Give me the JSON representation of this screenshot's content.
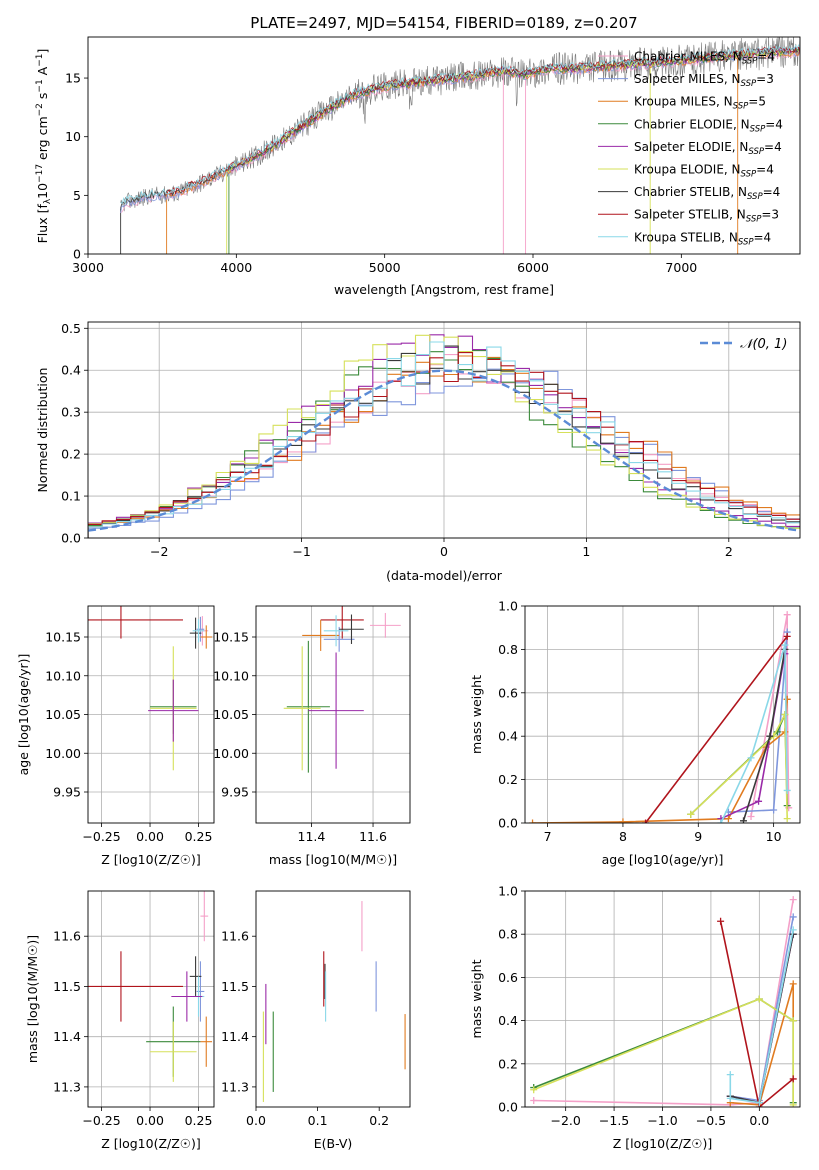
{
  "title": "PLATE=2497, MJD=54154, FIBERID=0189, z=0.207",
  "colors": {
    "C_MILES": "#f4a0c8",
    "S_MILES": "#7f96dc",
    "K_MILES": "#e07b20",
    "C_ELODIE": "#3b8a3b",
    "S_ELODIE": "#9a2aa8",
    "K_ELODIE": "#d6e05a",
    "C_STELIB": "#3a3a3a",
    "S_STELIB": "#b0141c",
    "K_STELIB": "#8ad8e8",
    "normal": "#5b8bd6",
    "spectrum": "#7a7a7a"
  },
  "chart_data": [
    {
      "id": "spectrum",
      "type": "line",
      "xlabel": "wavelength [Angstrom, rest frame]",
      "ylabel": "Flux [f_λ 10^-17 erg cm^-2 s^-1 A^-1]",
      "xlim": [
        3000,
        7800
      ],
      "ylim": [
        0,
        18.5
      ],
      "xticks": [
        3000,
        4000,
        5000,
        6000,
        7000
      ],
      "yticks": [
        0,
        5,
        10,
        15
      ],
      "grid": false,
      "legend": "top-right",
      "legend_entries": [
        {
          "key": "C_MILES",
          "text": "Chabrier MILES, N",
          "sub": "SSP",
          "tail": "=4"
        },
        {
          "key": "S_MILES",
          "text": "Salpeter MILES, N",
          "sub": "SSP",
          "tail": "=3"
        },
        {
          "key": "K_MILES",
          "text": "Kroupa MILES, N",
          "sub": "SSP",
          "tail": "=5"
        },
        {
          "key": "C_ELODIE",
          "text": "Chabrier ELODIE, N",
          "sub": "SSP",
          "tail": "=4"
        },
        {
          "key": "S_ELODIE",
          "text": "Salpeter ELODIE, N",
          "sub": "SSP",
          "tail": "=4"
        },
        {
          "key": "K_ELODIE",
          "text": "Kroupa ELODIE, N",
          "sub": "SSP",
          "tail": "=4"
        },
        {
          "key": "C_STELIB",
          "text": "Chabrier STELIB, N",
          "sub": "SSP",
          "tail": "=4"
        },
        {
          "key": "S_STELIB",
          "text": "Salpeter STELIB, N",
          "sub": "SSP",
          "tail": "=3"
        },
        {
          "key": "K_STELIB",
          "text": "Kroupa STELIB, N",
          "sub": "SSP",
          "tail": "=4"
        }
      ],
      "spectrum_envelope": {
        "x": [
          3220,
          3250,
          3400,
          3600,
          3800,
          3950,
          4050,
          4200,
          4400,
          4600,
          4800,
          5000,
          5200,
          5400,
          5600,
          5800,
          5950,
          6100,
          6300,
          6500,
          6700,
          6900,
          7100,
          7300,
          7500,
          7800
        ],
        "y": [
          3.9,
          4.4,
          4.9,
          5.2,
          6.3,
          7.2,
          7.8,
          8.8,
          10.5,
          12.2,
          13.6,
          14.3,
          14.6,
          14.9,
          15.2,
          15.6,
          15.3,
          15.8,
          15.8,
          16.0,
          16.2,
          16.4,
          16.6,
          16.9,
          17.1,
          17.3
        ]
      }
    },
    {
      "id": "residuals",
      "type": "histogram",
      "xlabel": "(data-model)/error",
      "ylabel": "Normed distribution",
      "xlim": [
        -2.5,
        2.5
      ],
      "ylim": [
        0,
        0.515
      ],
      "xticks": [
        -2,
        -1,
        0,
        1,
        2
      ],
      "yticks": [
        0.0,
        0.1,
        0.2,
        0.3,
        0.4,
        0.5
      ],
      "grid": true,
      "legend": "top-right",
      "legend_entries": [
        {
          "key": "normal",
          "text": "𝒩(0, 1)"
        }
      ],
      "bins": 50,
      "series": [
        {
          "key": "C_MILES",
          "peak": 0.38,
          "shift": 0.15,
          "width": 1.05,
          "seed": 1
        },
        {
          "key": "S_MILES",
          "peak": 0.39,
          "shift": 0.25,
          "width": 1.02,
          "seed": 2
        },
        {
          "key": "K_MILES",
          "peak": 0.4,
          "shift": 0.2,
          "width": 1.05,
          "seed": 3
        },
        {
          "key": "C_ELODIE",
          "peak": 0.42,
          "shift": -0.1,
          "width": 0.95,
          "seed": 4
        },
        {
          "key": "S_ELODIE",
          "peak": 0.43,
          "shift": -0.05,
          "width": 0.98,
          "seed": 5
        },
        {
          "key": "K_ELODIE",
          "peak": 0.44,
          "shift": -0.1,
          "width": 0.95,
          "seed": 6
        },
        {
          "key": "C_STELIB",
          "peak": 0.4,
          "shift": 0.05,
          "width": 1.02,
          "seed": 7
        },
        {
          "key": "S_STELIB",
          "peak": 0.4,
          "shift": 0.1,
          "width": 1.05,
          "seed": 8
        },
        {
          "key": "K_STELIB",
          "peak": 0.41,
          "shift": 0.1,
          "width": 1.0,
          "seed": 9
        }
      ]
    },
    {
      "id": "age_vs_Z",
      "type": "errorbar",
      "xlabel": "Z [log10(Z/Z☉)]",
      "ylabel": "age  [log10(age/yr)]",
      "xlim": [
        -0.32,
        0.33
      ],
      "ylim": [
        9.91,
        10.19
      ],
      "xticks": [
        -0.25,
        0.0,
        0.25
      ],
      "xticklabels": [
        "−0.25",
        "0.00",
        "0.25"
      ],
      "yticks": [
        9.95,
        10.0,
        10.05,
        10.1,
        10.15
      ],
      "yticklabels": [
        "9.95",
        "10.00",
        "10.05",
        "10.10",
        "10.15"
      ],
      "grid": true,
      "points": [
        {
          "key": "S_STELIB",
          "x": -0.15,
          "y": 10.172,
          "xerr": 0.32,
          "yerr": 0.024
        },
        {
          "key": "C_MILES",
          "x": 0.27,
          "y": 10.158,
          "xerr": 0.03,
          "yerr": 0.019
        },
        {
          "key": "S_MILES",
          "x": 0.26,
          "y": 10.16,
          "xerr": 0.02,
          "yerr": 0.016
        },
        {
          "key": "K_MILES",
          "x": 0.29,
          "y": 10.15,
          "xerr": 0.03,
          "yerr": 0.015
        },
        {
          "key": "C_STELIB",
          "x": 0.235,
          "y": 10.155,
          "xerr": 0.03,
          "yerr": 0.02
        },
        {
          "key": "K_STELIB",
          "x": 0.25,
          "y": 10.158,
          "xerr": 0.03,
          "yerr": 0.015
        },
        {
          "key": "C_ELODIE",
          "x": 0.12,
          "y": 10.06,
          "xerr": 0.12,
          "yerr": 0.035
        },
        {
          "key": "K_ELODIE",
          "x": 0.12,
          "y": 10.058,
          "xerr": 0.12,
          "yerr": 0.08
        },
        {
          "key": "S_ELODIE",
          "x": 0.12,
          "y": 10.055,
          "xerr": 0.13,
          "yerr": 0.04
        }
      ]
    },
    {
      "id": "age_vs_mass",
      "type": "errorbar",
      "xlabel": "mass [log10(M/M☉)]",
      "ylabel": "",
      "xlim": [
        11.22,
        11.72
      ],
      "ylim": [
        9.91,
        10.19
      ],
      "xticks": [
        11.4,
        11.6
      ],
      "xticklabels": [
        "11.4",
        "11.6"
      ],
      "yticks": [
        9.95,
        10.0,
        10.05,
        10.1,
        10.15
      ],
      "yticklabels": [
        "9.95",
        "10.00",
        "10.05",
        "10.10",
        "10.15"
      ],
      "grid": true,
      "points": [
        {
          "key": "S_STELIB",
          "x": 11.5,
          "y": 10.172,
          "xerr": 0.07,
          "yerr": 0.024
        },
        {
          "key": "C_MILES",
          "x": 11.64,
          "y": 10.165,
          "xerr": 0.05,
          "yerr": 0.016
        },
        {
          "key": "S_MILES",
          "x": 11.49,
          "y": 10.147,
          "xerr": 0.05,
          "yerr": 0.016
        },
        {
          "key": "K_MILES",
          "x": 11.43,
          "y": 10.152,
          "xerr": 0.06,
          "yerr": 0.02
        },
        {
          "key": "C_STELIB",
          "x": 11.53,
          "y": 10.16,
          "xerr": 0.04,
          "yerr": 0.019
        },
        {
          "key": "K_STELIB",
          "x": 11.48,
          "y": 10.158,
          "xerr": 0.04,
          "yerr": 0.02
        },
        {
          "key": "C_ELODIE",
          "x": 11.39,
          "y": 10.06,
          "xerr": 0.07,
          "yerr": 0.085
        },
        {
          "key": "K_ELODIE",
          "x": 11.37,
          "y": 10.058,
          "xerr": 0.06,
          "yerr": 0.08
        },
        {
          "key": "S_ELODIE",
          "x": 11.48,
          "y": 10.055,
          "xerr": 0.09,
          "yerr": 0.075
        }
      ]
    },
    {
      "id": "weight_vs_age",
      "type": "line",
      "xlabel": "age  [log10(age/yr)]",
      "ylabel": "mass weight",
      "xlim": [
        6.7,
        10.35
      ],
      "ylim": [
        0,
        1
      ],
      "xticks": [
        7,
        8,
        9,
        10
      ],
      "yticks": [
        0.0,
        0.2,
        0.4,
        0.6,
        0.8,
        1.0
      ],
      "grid": true,
      "series": [
        {
          "key": "C_MILES",
          "x": [
            9.7,
            10.18,
            10.18,
            10.2
          ],
          "y": [
            0.03,
            0.96,
            0.57,
            0.07
          ]
        },
        {
          "key": "S_MILES",
          "x": [
            9.4,
            10.0,
            10.18
          ],
          "y": [
            0.05,
            0.06,
            0.88
          ]
        },
        {
          "key": "K_MILES",
          "x": [
            6.8,
            8.0,
            9.4,
            9.9,
            10.15,
            10.18
          ],
          "y": [
            0.0,
            0.005,
            0.02,
            0.35,
            0.42,
            0.57
          ]
        },
        {
          "key": "C_ELODIE",
          "x": [
            8.9,
            10.05,
            10.15,
            10.18
          ],
          "y": [
            0.04,
            0.42,
            0.5,
            0.08
          ]
        },
        {
          "key": "S_ELODIE",
          "x": [
            9.3,
            9.8,
            10.15
          ],
          "y": [
            0.02,
            0.1,
            0.78
          ]
        },
        {
          "key": "K_ELODIE",
          "x": [
            8.9,
            10.0,
            10.15,
            10.18
          ],
          "y": [
            0.04,
            0.4,
            0.5,
            0.02
          ]
        },
        {
          "key": "C_STELIB",
          "x": [
            9.6,
            9.95,
            10.15
          ],
          "y": [
            0.01,
            0.4,
            0.8
          ]
        },
        {
          "key": "S_STELIB",
          "x": [
            8.3,
            10.18
          ],
          "y": [
            0.0,
            0.86
          ]
        },
        {
          "key": "K_STELIB",
          "x": [
            9.3,
            9.7,
            10.15,
            10.18
          ],
          "y": [
            0.0,
            0.3,
            0.82,
            0.15
          ]
        }
      ]
    },
    {
      "id": "mass_vs_Z",
      "type": "errorbar",
      "xlabel": "Z [log10(Z/Z☉)]",
      "ylabel": "mass [log10(M/M☉)]",
      "xlim": [
        -0.32,
        0.33
      ],
      "ylim": [
        11.26,
        11.69
      ],
      "xticks": [
        -0.25,
        0.0,
        0.25
      ],
      "xticklabels": [
        "−0.25",
        "0.00",
        "0.25"
      ],
      "yticks": [
        11.3,
        11.4,
        11.5,
        11.6
      ],
      "yticklabels": [
        "11.3",
        "11.4",
        "11.5",
        "11.6"
      ],
      "grid": true,
      "points": [
        {
          "key": "S_STELIB",
          "x": -0.15,
          "y": 11.5,
          "xerr": 0.32,
          "yerr": 0.07
        },
        {
          "key": "C_MILES",
          "x": 0.28,
          "y": 11.64,
          "xerr": 0.02,
          "yerr": 0.05
        },
        {
          "key": "S_MILES",
          "x": 0.26,
          "y": 11.49,
          "xerr": 0.02,
          "yerr": 0.06
        },
        {
          "key": "K_MILES",
          "x": 0.29,
          "y": 11.39,
          "xerr": 0.03,
          "yerr": 0.05
        },
        {
          "key": "C_STELIB",
          "x": 0.235,
          "y": 11.52,
          "xerr": 0.03,
          "yerr": 0.04
        },
        {
          "key": "K_STELIB",
          "x": 0.25,
          "y": 11.48,
          "xerr": 0.03,
          "yerr": 0.04
        },
        {
          "key": "C_ELODIE",
          "x": 0.12,
          "y": 11.39,
          "xerr": 0.14,
          "yerr": 0.07
        },
        {
          "key": "K_ELODIE",
          "x": 0.12,
          "y": 11.37,
          "xerr": 0.12,
          "yerr": 0.06
        },
        {
          "key": "S_ELODIE",
          "x": 0.19,
          "y": 11.48,
          "xerr": 0.08,
          "yerr": 0.05
        }
      ]
    },
    {
      "id": "mass_vs_EBV",
      "type": "errorbar",
      "xlabel": "E(B-V)",
      "ylabel": "",
      "xlim": [
        0.0,
        0.25
      ],
      "ylim": [
        11.26,
        11.69
      ],
      "xticks": [
        0.0,
        0.1,
        0.2
      ],
      "xticklabels": [
        "0.0",
        "0.1",
        "0.2"
      ],
      "yticks": [
        11.3,
        11.4,
        11.5,
        11.6
      ],
      "yticklabels": [
        "11.3",
        "11.4",
        "11.5",
        "11.6"
      ],
      "grid": false,
      "points": [
        {
          "key": "C_MILES",
          "x": 0.172,
          "y": 11.62,
          "xerr": 0.0,
          "yerr": 0.05
        },
        {
          "key": "S_MILES",
          "x": 0.195,
          "y": 11.5,
          "xerr": 0.0,
          "yerr": 0.05
        },
        {
          "key": "K_MILES",
          "x": 0.242,
          "y": 11.39,
          "xerr": 0.0,
          "yerr": 0.055
        },
        {
          "key": "C_STELIB",
          "x": 0.112,
          "y": 11.51,
          "xerr": 0.0,
          "yerr": 0.035
        },
        {
          "key": "S_STELIB",
          "x": 0.11,
          "y": 11.515,
          "xerr": 0.0,
          "yerr": 0.055
        },
        {
          "key": "K_STELIB",
          "x": 0.113,
          "y": 11.48,
          "xerr": 0.0,
          "yerr": 0.05
        },
        {
          "key": "C_ELODIE",
          "x": 0.028,
          "y": 11.37,
          "xerr": 0.0,
          "yerr": 0.08
        },
        {
          "key": "S_ELODIE",
          "x": 0.016,
          "y": 11.445,
          "xerr": 0.0,
          "yerr": 0.06
        },
        {
          "key": "K_ELODIE",
          "x": 0.012,
          "y": 11.36,
          "xerr": 0.0,
          "yerr": 0.09
        }
      ]
    },
    {
      "id": "weight_vs_Z",
      "type": "line",
      "xlabel": "Z [log10(Z/Z☉)]",
      "ylabel": "mass weight",
      "xlim": [
        -2.42,
        0.42
      ],
      "ylim": [
        0,
        1
      ],
      "xticks": [
        -2.0,
        -1.5,
        -1.0,
        -0.5,
        0.0
      ],
      "xticklabels": [
        "−2.0",
        "−1.5",
        "−1.0",
        "−0.5",
        "0.0"
      ],
      "yticks": [
        0.0,
        0.2,
        0.4,
        0.6,
        0.8,
        1.0
      ],
      "grid": true,
      "series": [
        {
          "key": "C_MILES",
          "x": [
            -2.33,
            -0.3,
            0.0,
            0.35
          ],
          "y": [
            0.03,
            0.01,
            0.02,
            0.96
          ]
        },
        {
          "key": "S_MILES",
          "x": [
            -0.3,
            0.0,
            0.35
          ],
          "y": [
            0.05,
            0.03,
            0.88
          ]
        },
        {
          "key": "K_MILES",
          "x": [
            -0.3,
            0.0,
            0.35,
            0.35
          ],
          "y": [
            0.02,
            0.01,
            0.57,
            0.4
          ]
        },
        {
          "key": "C_ELODIE",
          "x": [
            -2.33,
            0.0,
            0.35,
            0.35
          ],
          "y": [
            0.09,
            0.5,
            0.4,
            0.02
          ]
        },
        {
          "key": "S_ELODIE",
          "x": [
            -0.3,
            0.0,
            0.35
          ],
          "y": [
            0.05,
            0.02,
            0.8
          ]
        },
        {
          "key": "K_ELODIE",
          "x": [
            -2.33,
            0.0,
            0.35,
            0.35
          ],
          "y": [
            0.08,
            0.5,
            0.4,
            0.01
          ]
        },
        {
          "key": "C_STELIB",
          "x": [
            -0.3,
            0.0,
            0.35
          ],
          "y": [
            0.05,
            0.02,
            0.8
          ]
        },
        {
          "key": "S_STELIB",
          "x": [
            -0.4,
            0.0,
            0.35
          ],
          "y": [
            0.86,
            0.0,
            0.13
          ]
        },
        {
          "key": "K_STELIB",
          "x": [
            -0.3,
            -0.3,
            0.0,
            0.35
          ],
          "y": [
            0.15,
            0.04,
            0.02,
            0.82
          ]
        }
      ]
    }
  ]
}
